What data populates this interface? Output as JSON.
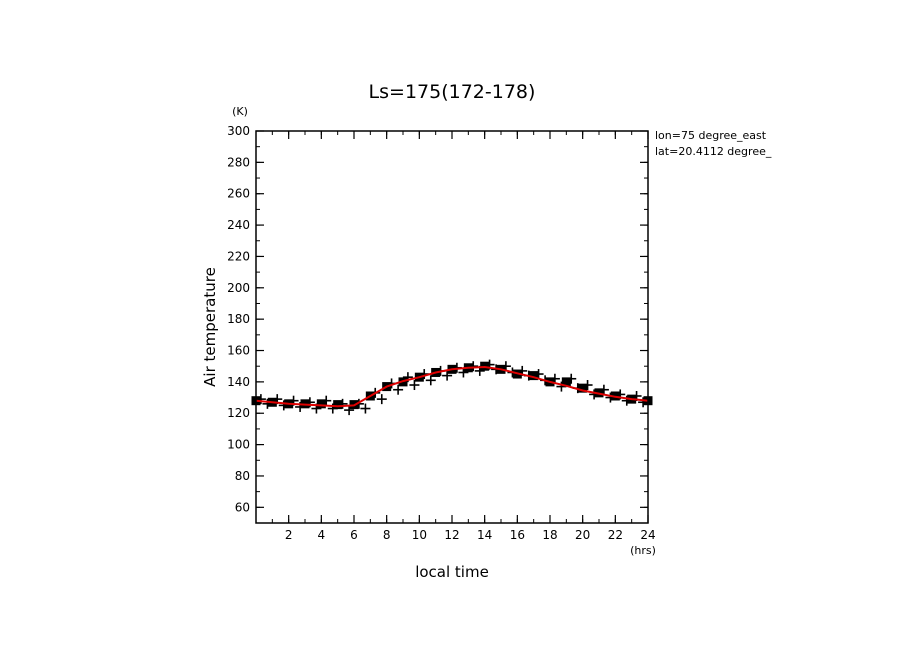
{
  "chart_data": {
    "type": "line",
    "title": "Ls=175(172-178)",
    "xlabel": "local time",
    "ylabel": "Air temperature",
    "x_unit": "(hrs)",
    "y_unit": "(K)",
    "annotations": [
      "lon=75 degree_east",
      "lat=20.4112 degree_"
    ],
    "xlim": [
      0,
      24
    ],
    "ylim": [
      50,
      300
    ],
    "x_ticks": [
      2,
      4,
      6,
      8,
      10,
      12,
      14,
      16,
      18,
      20,
      22,
      24
    ],
    "y_ticks": [
      60,
      80,
      100,
      120,
      140,
      160,
      180,
      200,
      220,
      240,
      260,
      280,
      300
    ],
    "grid": false,
    "colors": {
      "mean_line": "#dd0000",
      "markers": "#000000"
    },
    "series": [
      {
        "style": "red-line",
        "x": [
          0,
          1,
          2,
          3,
          4,
          5,
          6,
          7,
          8,
          9,
          10,
          11,
          12,
          13,
          14,
          15,
          16,
          17,
          18,
          19,
          20,
          21,
          22,
          23,
          24
        ],
        "values": [
          128,
          127,
          126,
          125.5,
          125,
          124.5,
          125,
          131,
          137,
          140.5,
          143,
          146,
          148,
          149,
          149.5,
          148,
          145.5,
          143,
          140,
          137.5,
          134.5,
          132.5,
          130.5,
          129,
          128
        ]
      },
      {
        "style": "filled-square-markers",
        "x": [
          0,
          1,
          2,
          3,
          4,
          5,
          6,
          7,
          8,
          9,
          10,
          11,
          12,
          13,
          14,
          15,
          16,
          17,
          18,
          19,
          20,
          21,
          22,
          23,
          24
        ],
        "values": [
          128,
          127,
          126,
          126,
          126,
          125.5,
          125.5,
          131,
          137,
          140,
          143,
          146,
          148,
          149,
          150,
          148,
          145,
          144,
          140,
          140,
          136,
          133,
          131,
          129,
          128
        ]
      },
      {
        "style": "plus-markers",
        "x": [
          0.3,
          1.3,
          2.3,
          3.3,
          4.3,
          5.3,
          6.3,
          7.3,
          8.3,
          9.3,
          10.3,
          11.3,
          12.3,
          13.3,
          14.3,
          15.3,
          16.3,
          17.3,
          18.3,
          19.3,
          20.3,
          21.3,
          22.3,
          23.3,
          0.7,
          1.7,
          2.7,
          3.7,
          4.7,
          5.7,
          6.7,
          7.7,
          8.7,
          9.7,
          10.7,
          11.7,
          12.7,
          13.7,
          14.7,
          15.7,
          16.7,
          17.7,
          18.7,
          19.7,
          20.7,
          21.7,
          22.7,
          23.7
        ],
        "values": [
          129,
          129,
          128,
          127,
          128,
          126,
          126,
          133,
          139,
          143,
          145,
          147,
          149,
          150,
          151,
          150,
          147,
          145,
          142,
          142,
          138,
          135,
          132,
          131,
          126,
          125,
          124,
          123,
          123,
          122,
          123,
          129,
          135,
          138,
          141,
          144,
          146,
          147,
          148,
          146,
          144,
          141,
          137,
          136,
          132,
          130,
          128,
          127
        ]
      }
    ]
  }
}
